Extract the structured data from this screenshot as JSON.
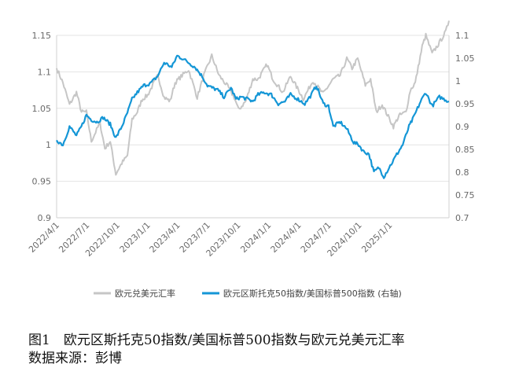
{
  "chart_data": {
    "type": "line",
    "x_range": [
      "2022-04-01",
      "2025-06-30"
    ],
    "x_ticks": [
      "2022/4/1",
      "2022/7/1",
      "2022/10/1",
      "2023/1/1",
      "2023/4/1",
      "2023/7/1",
      "2023/10/1",
      "2024/1/1",
      "2024/4/1",
      "2024/7/1",
      "2024/10/1",
      "2025/1/1"
    ],
    "y_left": {
      "range": [
        0.9,
        1.15
      ],
      "ticks": [
        "0.9",
        "0.95",
        "1",
        "1.05",
        "1.1",
        "1.15"
      ]
    },
    "y_right": {
      "range": [
        0.7,
        1.1
      ],
      "ticks": [
        "0.7",
        "0.75",
        "0.8",
        "0.85",
        "0.9",
        "0.95",
        "1",
        "1.05",
        "1.1"
      ]
    },
    "grid": true,
    "legend_position": "bottom",
    "series": [
      {
        "name": "欧元兑美元汇率",
        "axis": "left",
        "color": "#c6c6c6",
        "points": [
          [
            "2022-04-01",
            1.105
          ],
          [
            "2022-04-20",
            1.085
          ],
          [
            "2022-05-10",
            1.055
          ],
          [
            "2022-05-31",
            1.072
          ],
          [
            "2022-06-15",
            1.045
          ],
          [
            "2022-06-30",
            1.045
          ],
          [
            "2022-07-15",
            1.005
          ],
          [
            "2022-08-10",
            1.03
          ],
          [
            "2022-08-25",
            0.995
          ],
          [
            "2022-09-10",
            1.005
          ],
          [
            "2022-09-27",
            0.96
          ],
          [
            "2022-10-15",
            0.975
          ],
          [
            "2022-11-01",
            0.985
          ],
          [
            "2022-11-15",
            1.035
          ],
          [
            "2022-12-01",
            1.045
          ],
          [
            "2022-12-15",
            1.062
          ],
          [
            "2023-01-01",
            1.068
          ],
          [
            "2023-01-20",
            1.085
          ],
          [
            "2023-02-01",
            1.095
          ],
          [
            "2023-02-20",
            1.065
          ],
          [
            "2023-03-10",
            1.06
          ],
          [
            "2023-03-25",
            1.085
          ],
          [
            "2023-04-15",
            1.095
          ],
          [
            "2023-05-05",
            1.103
          ],
          [
            "2023-05-31",
            1.065
          ],
          [
            "2023-06-20",
            1.095
          ],
          [
            "2023-07-14",
            1.122
          ],
          [
            "2023-08-05",
            1.095
          ],
          [
            "2023-08-31",
            1.08
          ],
          [
            "2023-09-20",
            1.065
          ],
          [
            "2023-10-03",
            1.048
          ],
          [
            "2023-10-25",
            1.06
          ],
          [
            "2023-11-15",
            1.09
          ],
          [
            "2023-12-01",
            1.09
          ],
          [
            "2023-12-28",
            1.11
          ],
          [
            "2024-01-15",
            1.09
          ],
          [
            "2024-02-14",
            1.072
          ],
          [
            "2024-03-08",
            1.094
          ],
          [
            "2024-04-16",
            1.063
          ],
          [
            "2024-05-15",
            1.088
          ],
          [
            "2024-06-14",
            1.07
          ],
          [
            "2024-07-15",
            1.09
          ],
          [
            "2024-08-05",
            1.095
          ],
          [
            "2024-08-25",
            1.118
          ],
          [
            "2024-09-10",
            1.105
          ],
          [
            "2024-09-27",
            1.118
          ],
          [
            "2024-10-20",
            1.082
          ],
          [
            "2024-11-05",
            1.09
          ],
          [
            "2024-11-22",
            1.045
          ],
          [
            "2024-12-10",
            1.055
          ],
          [
            "2025-01-13",
            1.025
          ],
          [
            "2025-01-30",
            1.04
          ],
          [
            "2025-02-20",
            1.045
          ],
          [
            "2025-03-05",
            1.075
          ],
          [
            "2025-03-20",
            1.085
          ],
          [
            "2025-04-10",
            1.135
          ],
          [
            "2025-04-21",
            1.15
          ],
          [
            "2025-05-10",
            1.125
          ],
          [
            "2025-06-01",
            1.14
          ],
          [
            "2025-06-20",
            1.155
          ],
          [
            "2025-06-30",
            1.17
          ]
        ]
      },
      {
        "name": "欧元区斯托克50指数/美国标普500指数 (右轴)",
        "axis": "right",
        "color": "#1496d6",
        "points": [
          [
            "2022-04-01",
            0.87
          ],
          [
            "2022-04-20",
            0.86
          ],
          [
            "2022-05-10",
            0.9
          ],
          [
            "2022-05-31",
            0.88
          ],
          [
            "2022-06-15",
            0.9
          ],
          [
            "2022-06-30",
            0.925
          ],
          [
            "2022-07-15",
            0.915
          ],
          [
            "2022-08-01",
            0.91
          ],
          [
            "2022-08-20",
            0.92
          ],
          [
            "2022-09-10",
            0.905
          ],
          [
            "2022-09-27",
            0.875
          ],
          [
            "2022-10-15",
            0.9
          ],
          [
            "2022-11-01",
            0.93
          ],
          [
            "2022-11-15",
            0.96
          ],
          [
            "2022-12-01",
            0.975
          ],
          [
            "2022-12-20",
            0.99
          ],
          [
            "2023-01-10",
            0.995
          ],
          [
            "2023-01-31",
            1.01
          ],
          [
            "2023-02-20",
            1.04
          ],
          [
            "2023-03-05",
            1.035
          ],
          [
            "2023-03-15",
            1.03
          ],
          [
            "2023-03-31",
            1.055
          ],
          [
            "2023-04-15",
            1.05
          ],
          [
            "2023-05-05",
            1.04
          ],
          [
            "2023-05-25",
            1.03
          ],
          [
            "2023-06-15",
            1.01
          ],
          [
            "2023-07-01",
            0.99
          ],
          [
            "2023-07-15",
            0.985
          ],
          [
            "2023-08-01",
            0.98
          ],
          [
            "2023-08-20",
            0.965
          ],
          [
            "2023-09-10",
            0.985
          ],
          [
            "2023-09-25",
            0.96
          ],
          [
            "2023-10-10",
            0.965
          ],
          [
            "2023-10-31",
            0.96
          ],
          [
            "2023-11-15",
            0.955
          ],
          [
            "2023-12-01",
            0.97
          ],
          [
            "2023-12-20",
            0.975
          ],
          [
            "2024-01-10",
            0.97
          ],
          [
            "2024-01-31",
            0.95
          ],
          [
            "2024-02-20",
            0.955
          ],
          [
            "2024-03-08",
            0.97
          ],
          [
            "2024-03-31",
            0.96
          ],
          [
            "2024-04-20",
            0.95
          ],
          [
            "2024-05-10",
            0.97
          ],
          [
            "2024-05-25",
            0.99
          ],
          [
            "2024-06-15",
            0.95
          ],
          [
            "2024-07-01",
            0.945
          ],
          [
            "2024-07-15",
            0.9
          ],
          [
            "2024-08-05",
            0.91
          ],
          [
            "2024-08-25",
            0.895
          ],
          [
            "2024-09-15",
            0.865
          ],
          [
            "2024-09-30",
            0.86
          ],
          [
            "2024-10-15",
            0.845
          ],
          [
            "2024-10-31",
            0.84
          ],
          [
            "2024-11-15",
            0.8
          ],
          [
            "2024-11-30",
            0.81
          ],
          [
            "2024-12-15",
            0.79
          ],
          [
            "2024-12-31",
            0.81
          ],
          [
            "2025-01-20",
            0.835
          ],
          [
            "2025-02-10",
            0.86
          ],
          [
            "2025-03-01",
            0.9
          ],
          [
            "2025-03-15",
            0.92
          ],
          [
            "2025-04-05",
            0.955
          ],
          [
            "2025-04-21",
            0.975
          ],
          [
            "2025-05-10",
            0.945
          ],
          [
            "2025-06-01",
            0.965
          ],
          [
            "2025-06-30",
            0.955
          ]
        ]
      }
    ]
  },
  "legend": {
    "series1": "欧元兑美元汇率",
    "series2": "欧元区斯托克50指数/美国标普500指数 (右轴)"
  },
  "caption": {
    "line1": "图1　欧元区斯托克50指数/美国标普500指数与欧元兑美元汇率",
    "line2": "数据来源：彭博"
  }
}
